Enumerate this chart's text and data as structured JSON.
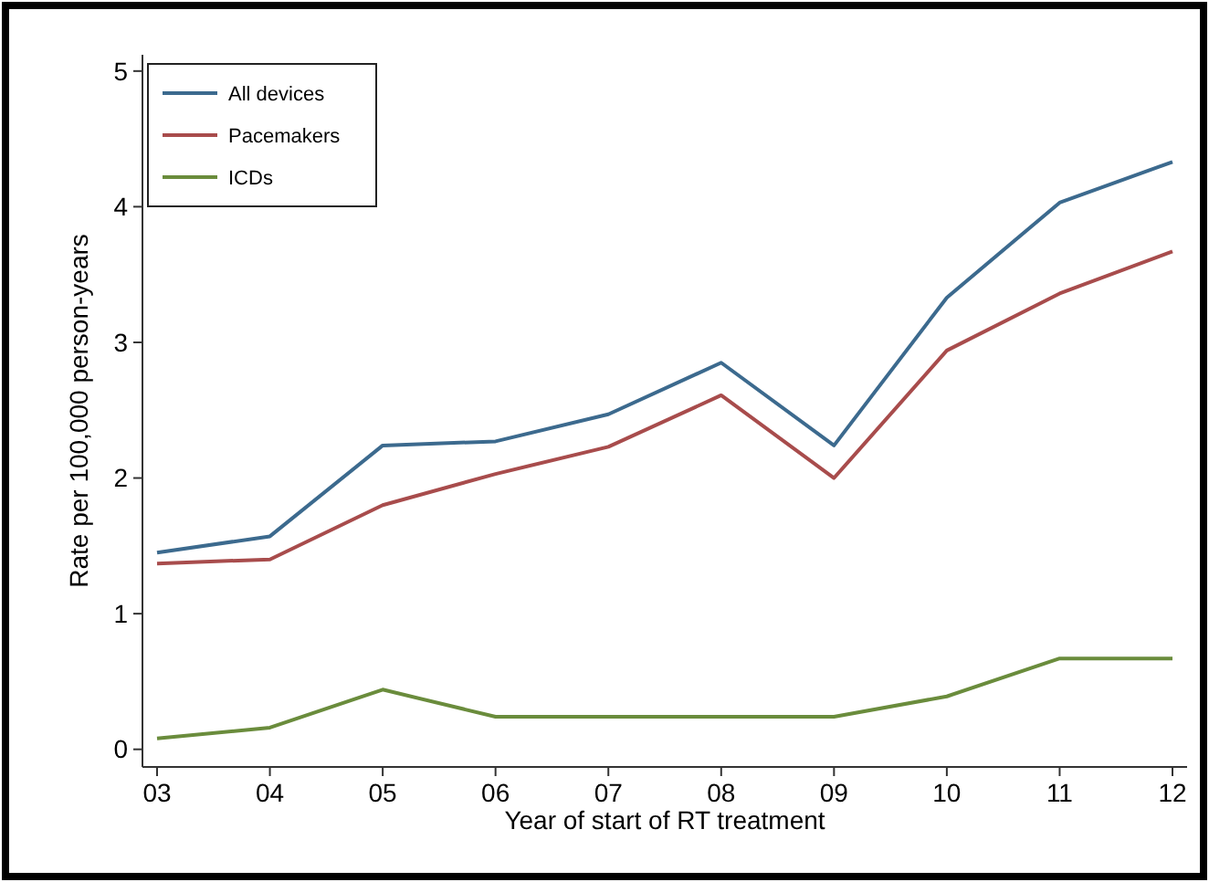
{
  "chart_data": {
    "type": "line",
    "xlabel": "Year of start of RT treatment",
    "ylabel": "Rate per 100,000 person-years",
    "categories": [
      "03",
      "04",
      "05",
      "06",
      "07",
      "08",
      "09",
      "10",
      "11",
      "12"
    ],
    "ylim": [
      -0.13,
      5.12
    ],
    "yticks": [
      0,
      1,
      2,
      3,
      4,
      5
    ],
    "grid": false,
    "legend": "top left",
    "marker": "none",
    "line_style": "solid",
    "series": [
      {
        "name": "All devices",
        "color": "#3c6a8e",
        "values": [
          1.45,
          1.57,
          2.24,
          2.27,
          2.47,
          2.85,
          2.24,
          3.33,
          4.03,
          4.33
        ]
      },
      {
        "name": "Pacemakers",
        "color": "#a84c4c",
        "values": [
          1.37,
          1.4,
          1.8,
          2.03,
          2.23,
          2.61,
          2.0,
          2.94,
          3.36,
          3.67
        ]
      },
      {
        "name": "ICDs",
        "color": "#6a8c3c",
        "values": [
          0.08,
          0.16,
          0.44,
          0.24,
          0.24,
          0.24,
          0.24,
          0.39,
          0.67,
          0.67
        ]
      }
    ]
  }
}
